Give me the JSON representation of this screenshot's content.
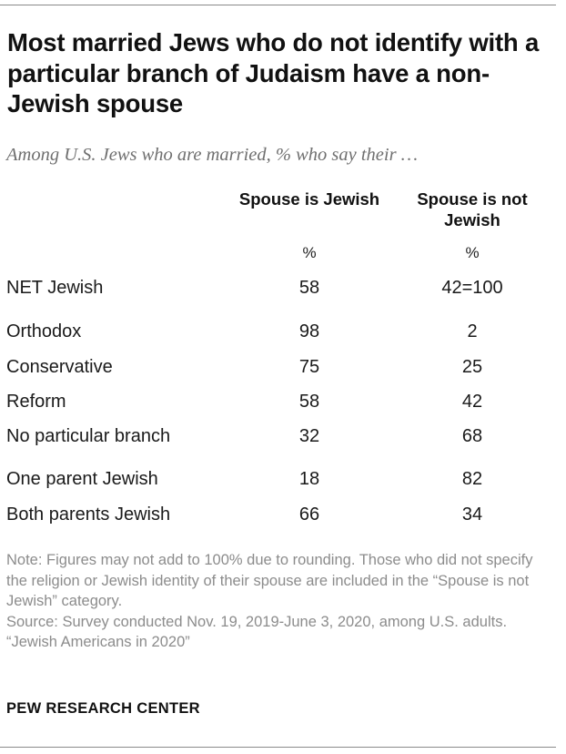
{
  "title": "Most married Jews who do not identify with a particular branch of Judaism have a non-Jewish spouse",
  "subtitle": "Among U.S. Jews who are married, % who say their …",
  "chart_data": {
    "type": "table",
    "columns": [
      {
        "label": "Spouse is Jewish",
        "unit": "%"
      },
      {
        "label": "Spouse is not Jewish",
        "unit": "%"
      }
    ],
    "rows": [
      {
        "label": "NET Jewish",
        "values": [
          "58",
          "42=100"
        ]
      },
      {
        "label": "Orthodox",
        "values": [
          "98",
          "2"
        ]
      },
      {
        "label": "Conservative",
        "values": [
          "75",
          "25"
        ]
      },
      {
        "label": "Reform",
        "values": [
          "58",
          "42"
        ]
      },
      {
        "label": "No particular branch",
        "values": [
          "32",
          "68"
        ]
      },
      {
        "label": "One parent Jewish",
        "values": [
          "18",
          "82"
        ]
      },
      {
        "label": "Both parents Jewish",
        "values": [
          "66",
          "34"
        ]
      }
    ]
  },
  "notes": {
    "note": "Note: Figures may not add to 100% due to rounding. Those who did not specify the religion or Jewish identity of their spouse are included in the “Spouse is not Jewish” category.",
    "source": "Source: Survey conducted Nov. 19, 2019-June 3, 2020, among U.S. adults.",
    "report": "“Jewish Americans in 2020”"
  },
  "brand": "PEW RESEARCH CENTER"
}
